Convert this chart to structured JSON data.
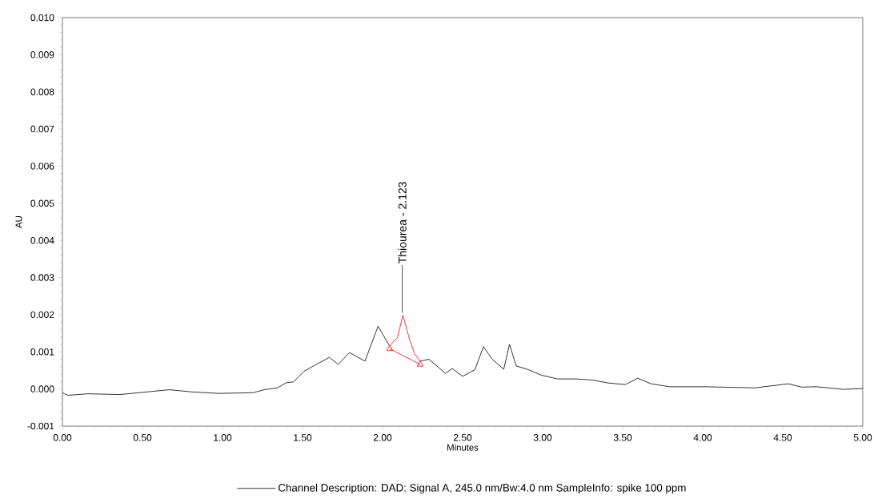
{
  "chart_data": {
    "type": "line",
    "xlabel": "Minutes",
    "ylabel": "AU",
    "xlim": [
      0,
      5
    ],
    "ylim": [
      -0.001,
      0.01
    ],
    "xticks": [
      {
        "value": 0,
        "label": "0.00"
      },
      {
        "value": 0.5,
        "label": "0.50"
      },
      {
        "value": 1,
        "label": "1.00"
      },
      {
        "value": 1.5,
        "label": "1.50"
      },
      {
        "value": 2,
        "label": "2.00"
      },
      {
        "value": 2.5,
        "label": "2.50"
      },
      {
        "value": 3,
        "label": "3.00"
      },
      {
        "value": 3.5,
        "label": "3.50"
      },
      {
        "value": 4,
        "label": "4.00"
      },
      {
        "value": 4.5,
        "label": "4.50"
      },
      {
        "value": 5,
        "label": "5.00"
      }
    ],
    "yticks": [
      {
        "value": -0.001,
        "label": "-0.001"
      },
      {
        "value": 0,
        "label": "0.000"
      },
      {
        "value": 0.001,
        "label": "0.001"
      },
      {
        "value": 0.002,
        "label": "0.002"
      },
      {
        "value": 0.003,
        "label": "0.003"
      },
      {
        "value": 0.004,
        "label": "0.004"
      },
      {
        "value": 0.005,
        "label": "0.005"
      },
      {
        "value": 0.006,
        "label": "0.006"
      },
      {
        "value": 0.007,
        "label": "0.007"
      },
      {
        "value": 0.008,
        "label": "0.008"
      },
      {
        "value": 0.009,
        "label": "0.009"
      },
      {
        "value": 0.01,
        "label": "0.010"
      }
    ],
    "grid": false,
    "legend": "bottom",
    "marker": "none",
    "line_style": "solid",
    "series": [
      {
        "name": "Channel Description: DAD: Signal A, 245.0 nm/Bw:4.0 nm SampleInfo: spike 100 ppm",
        "color": "#000000",
        "x": [
          0,
          0.013,
          0.035,
          0.16,
          0.36,
          0.527,
          0.668,
          0.81,
          0.977,
          1.193,
          1.26,
          1.343,
          1.4,
          1.443,
          1.51,
          1.577,
          1.668,
          1.723,
          1.793,
          1.89,
          1.972,
          2.043,
          2.1,
          2.235,
          2.29,
          2.393,
          2.435,
          2.5,
          2.577,
          2.63,
          2.685,
          2.757,
          2.793,
          2.835,
          2.91,
          2.993,
          3.093,
          3.21,
          3.31,
          3.41,
          3.518,
          3.593,
          3.677,
          3.793,
          4.01,
          4.327,
          4.535,
          4.618,
          4.71,
          4.877,
          5.0
        ],
        "values": [
          -0.0001,
          -0.00013,
          -0.00017,
          -0.00013,
          -0.00015,
          -8e-05,
          -2e-05,
          -8e-05,
          -0.00012,
          -0.0001,
          -2e-05,
          3e-05,
          0.00017,
          0.00019,
          0.00048,
          0.00064,
          0.00085,
          0.00066,
          0.00098,
          0.00075,
          0.00169,
          0.00116,
          null,
          0.00075,
          0.0008,
          0.00042,
          0.00055,
          0.00034,
          0.00052,
          0.00114,
          0.0008,
          0.00053,
          0.0012,
          0.00062,
          0.00052,
          0.00037,
          0.00027,
          0.00027,
          0.00024,
          0.00016,
          0.00012,
          0.00029,
          0.00014,
          6e-05,
          6e-05,
          3e-05,
          0.00014,
          5e-05,
          6e-05,
          -1e-05,
          1e-05
        ]
      },
      {
        "color": "#ff0000",
        "x": [
          2.043,
          2.093,
          2.127,
          2.168,
          2.2,
          2.235
        ],
        "values": [
          0.00116,
          0.00138,
          0.00199,
          0.00134,
          0.00095,
          0.00075
        ]
      },
      {
        "color": "#ff0000",
        "marker": "triangle",
        "x": [
          2.045,
          2.235
        ],
        "values": [
          0.00108,
          0.00066
        ]
      }
    ],
    "annotations": [
      {
        "text": "Thiourea - 2.123",
        "x": 2.123,
        "y": 0.00205
      }
    ]
  }
}
